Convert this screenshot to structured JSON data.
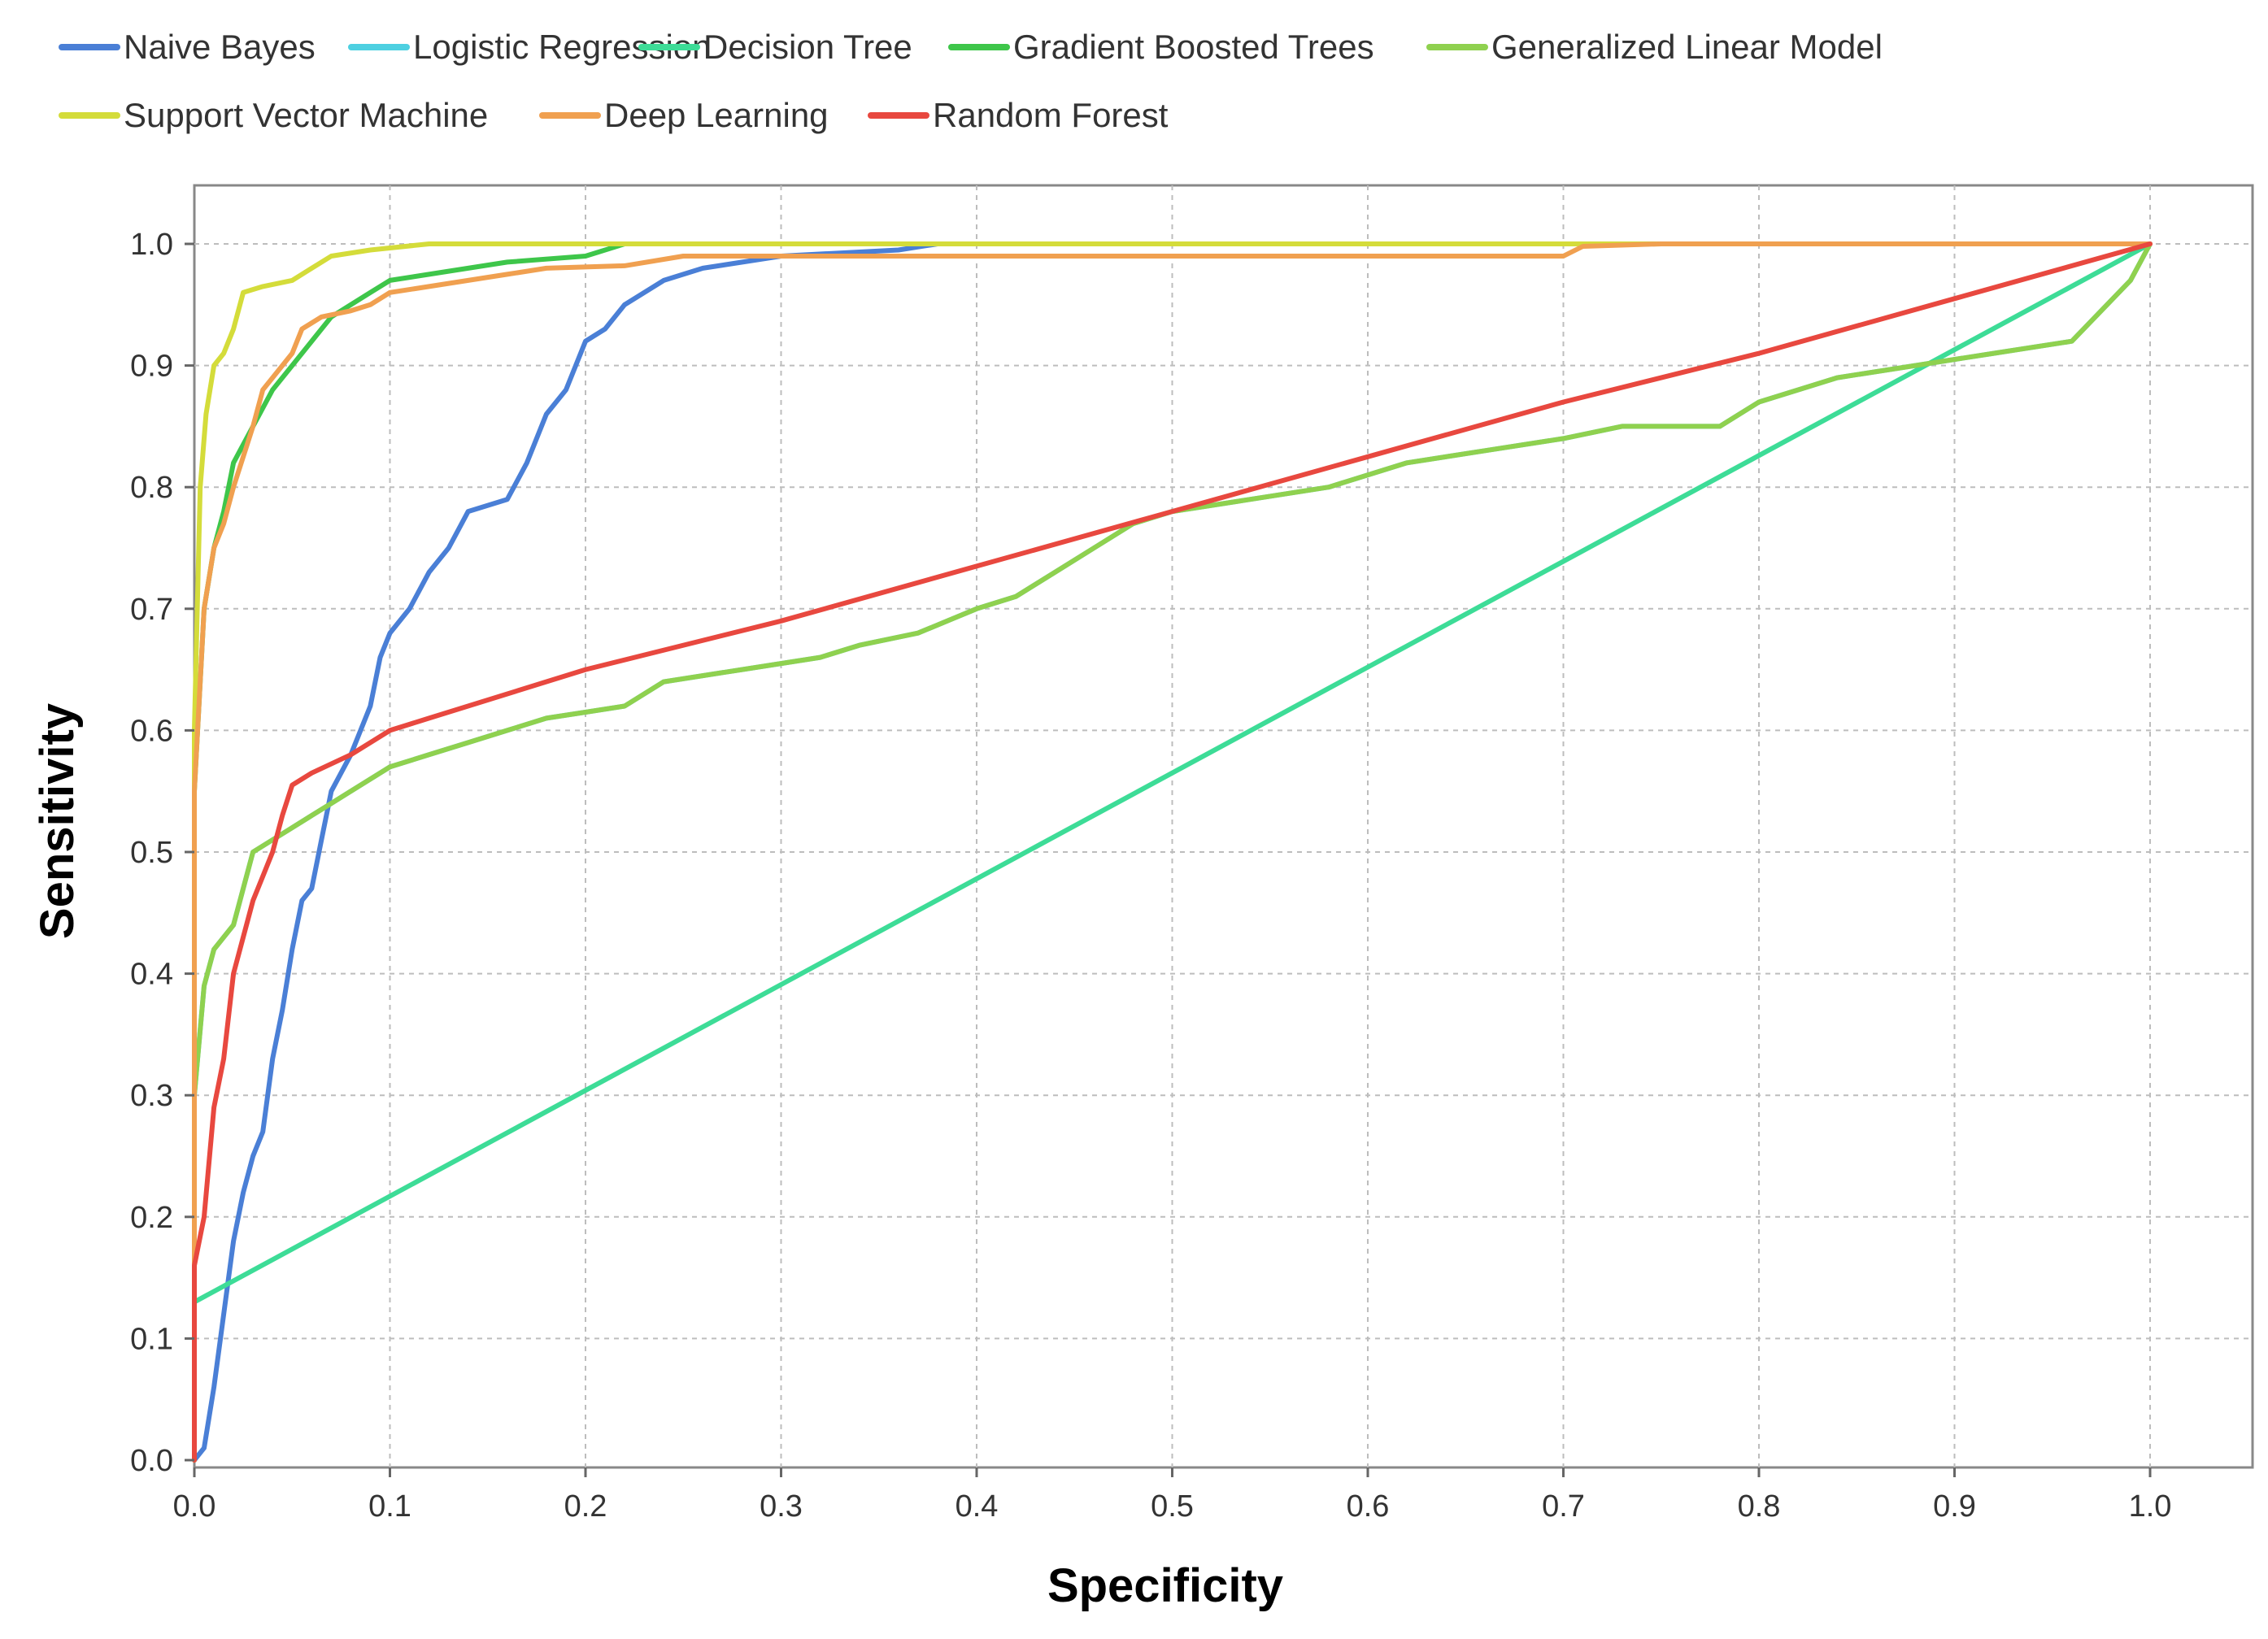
{
  "chart_data": {
    "type": "line",
    "title": "",
    "xlabel": "Specificity",
    "ylabel": "Sensitivity",
    "xlim": [
      0.0,
      1.05
    ],
    "ylim": [
      0.0,
      1.05
    ],
    "xticks": [
      "0.0",
      "0.1",
      "0.2",
      "0.3",
      "0.4",
      "0.5",
      "0.6",
      "0.7",
      "0.8",
      "0.9",
      "1.0"
    ],
    "yticks": [
      "0.0",
      "0.1",
      "0.2",
      "0.3",
      "0.4",
      "0.5",
      "0.6",
      "0.7",
      "0.8",
      "0.9",
      "1.0"
    ],
    "grid": true,
    "legend_position": "top",
    "series": [
      {
        "name": "Naive Bayes",
        "color": "#4a7fd6",
        "points": [
          [
            0,
            0
          ],
          [
            0.005,
            0.01
          ],
          [
            0.01,
            0.06
          ],
          [
            0.015,
            0.12
          ],
          [
            0.02,
            0.18
          ],
          [
            0.025,
            0.22
          ],
          [
            0.03,
            0.25
          ],
          [
            0.035,
            0.27
          ],
          [
            0.04,
            0.33
          ],
          [
            0.045,
            0.37
          ],
          [
            0.05,
            0.42
          ],
          [
            0.055,
            0.46
          ],
          [
            0.06,
            0.47
          ],
          [
            0.065,
            0.51
          ],
          [
            0.07,
            0.55
          ],
          [
            0.08,
            0.58
          ],
          [
            0.085,
            0.6
          ],
          [
            0.09,
            0.62
          ],
          [
            0.095,
            0.66
          ],
          [
            0.1,
            0.68
          ],
          [
            0.11,
            0.7
          ],
          [
            0.12,
            0.73
          ],
          [
            0.13,
            0.75
          ],
          [
            0.14,
            0.78
          ],
          [
            0.16,
            0.79
          ],
          [
            0.17,
            0.82
          ],
          [
            0.18,
            0.86
          ],
          [
            0.19,
            0.88
          ],
          [
            0.2,
            0.92
          ],
          [
            0.21,
            0.93
          ],
          [
            0.22,
            0.95
          ],
          [
            0.24,
            0.97
          ],
          [
            0.26,
            0.98
          ],
          [
            0.3,
            0.99
          ],
          [
            0.36,
            0.995
          ],
          [
            0.38,
            1.0
          ],
          [
            1.0,
            1.0
          ]
        ]
      },
      {
        "name": "Logistic Regression",
        "color": "#4dd0e1",
        "points": [
          [
            0,
            0
          ],
          [
            0,
            0.3
          ],
          [
            0.005,
            0.39
          ],
          [
            0.01,
            0.42
          ],
          [
            0.02,
            0.44
          ],
          [
            0.025,
            0.47
          ],
          [
            0.03,
            0.5
          ],
          [
            0.04,
            0.51
          ],
          [
            0.05,
            0.52
          ],
          [
            0.06,
            0.53
          ],
          [
            0.07,
            0.54
          ],
          [
            0.08,
            0.55
          ],
          [
            0.1,
            0.57
          ],
          [
            0.12,
            0.58
          ],
          [
            0.14,
            0.59
          ],
          [
            0.16,
            0.6
          ],
          [
            0.18,
            0.61
          ],
          [
            0.2,
            0.615
          ],
          [
            0.22,
            0.62
          ],
          [
            0.24,
            0.64
          ],
          [
            0.28,
            0.65
          ],
          [
            0.32,
            0.66
          ],
          [
            0.34,
            0.67
          ],
          [
            0.37,
            0.68
          ],
          [
            0.4,
            0.7
          ],
          [
            0.42,
            0.71
          ],
          [
            0.44,
            0.73
          ],
          [
            0.46,
            0.75
          ],
          [
            0.48,
            0.77
          ],
          [
            0.5,
            0.78
          ],
          [
            0.54,
            0.79
          ],
          [
            0.58,
            0.8
          ],
          [
            0.62,
            0.82
          ],
          [
            0.66,
            0.83
          ],
          [
            0.7,
            0.84
          ],
          [
            0.73,
            0.85
          ],
          [
            0.78,
            0.85
          ],
          [
            0.8,
            0.87
          ],
          [
            0.84,
            0.89
          ],
          [
            0.88,
            0.9
          ],
          [
            0.92,
            0.91
          ],
          [
            0.96,
            0.92
          ],
          [
            0.99,
            0.97
          ],
          [
            1.0,
            1.0
          ]
        ]
      },
      {
        "name": "Decision Tree",
        "color": "#3ddc97",
        "points": [
          [
            0,
            0
          ],
          [
            0,
            0.13
          ],
          [
            1.0,
            1.0
          ]
        ]
      },
      {
        "name": "Gradient Boosted Trees",
        "color": "#3ec64a",
        "points": [
          [
            0,
            0
          ],
          [
            0,
            0.55
          ],
          [
            0.005,
            0.7
          ],
          [
            0.01,
            0.75
          ],
          [
            0.015,
            0.78
          ],
          [
            0.02,
            0.82
          ],
          [
            0.03,
            0.85
          ],
          [
            0.04,
            0.88
          ],
          [
            0.05,
            0.9
          ],
          [
            0.06,
            0.92
          ],
          [
            0.07,
            0.94
          ],
          [
            0.08,
            0.95
          ],
          [
            0.09,
            0.96
          ],
          [
            0.1,
            0.97
          ],
          [
            0.12,
            0.975
          ],
          [
            0.14,
            0.98
          ],
          [
            0.16,
            0.985
          ],
          [
            0.2,
            0.99
          ],
          [
            0.22,
            1.0
          ],
          [
            1.0,
            1.0
          ]
        ]
      },
      {
        "name": "Generalized Linear Model",
        "color": "#8fd14f",
        "points": [
          [
            0,
            0
          ],
          [
            0,
            0.3
          ],
          [
            0.005,
            0.39
          ],
          [
            0.01,
            0.42
          ],
          [
            0.02,
            0.44
          ],
          [
            0.025,
            0.47
          ],
          [
            0.03,
            0.5
          ],
          [
            0.04,
            0.51
          ],
          [
            0.05,
            0.52
          ],
          [
            0.06,
            0.53
          ],
          [
            0.07,
            0.54
          ],
          [
            0.08,
            0.55
          ],
          [
            0.1,
            0.57
          ],
          [
            0.12,
            0.58
          ],
          [
            0.14,
            0.59
          ],
          [
            0.16,
            0.6
          ],
          [
            0.18,
            0.61
          ],
          [
            0.2,
            0.615
          ],
          [
            0.22,
            0.62
          ],
          [
            0.24,
            0.64
          ],
          [
            0.28,
            0.65
          ],
          [
            0.32,
            0.66
          ],
          [
            0.34,
            0.67
          ],
          [
            0.37,
            0.68
          ],
          [
            0.4,
            0.7
          ],
          [
            0.42,
            0.71
          ],
          [
            0.44,
            0.73
          ],
          [
            0.46,
            0.75
          ],
          [
            0.48,
            0.77
          ],
          [
            0.5,
            0.78
          ],
          [
            0.54,
            0.79
          ],
          [
            0.58,
            0.8
          ],
          [
            0.62,
            0.82
          ],
          [
            0.66,
            0.83
          ],
          [
            0.7,
            0.84
          ],
          [
            0.73,
            0.85
          ],
          [
            0.78,
            0.85
          ],
          [
            0.8,
            0.87
          ],
          [
            0.84,
            0.89
          ],
          [
            0.88,
            0.9
          ],
          [
            0.92,
            0.91
          ],
          [
            0.96,
            0.92
          ],
          [
            0.99,
            0.97
          ],
          [
            1.0,
            1.0
          ]
        ]
      },
      {
        "name": "Support Vector Machine",
        "color": "#d4dc3a",
        "points": [
          [
            0,
            0
          ],
          [
            0,
            0.6
          ],
          [
            0.003,
            0.8
          ],
          [
            0.006,
            0.86
          ],
          [
            0.01,
            0.9
          ],
          [
            0.015,
            0.91
          ],
          [
            0.02,
            0.93
          ],
          [
            0.025,
            0.96
          ],
          [
            0.035,
            0.965
          ],
          [
            0.05,
            0.97
          ],
          [
            0.06,
            0.98
          ],
          [
            0.07,
            0.99
          ],
          [
            0.09,
            0.995
          ],
          [
            0.12,
            1.0
          ],
          [
            1.0,
            1.0
          ]
        ]
      },
      {
        "name": "Deep Learning",
        "color": "#f0a050",
        "points": [
          [
            0,
            0
          ],
          [
            0,
            0.55
          ],
          [
            0.005,
            0.7
          ],
          [
            0.01,
            0.75
          ],
          [
            0.015,
            0.77
          ],
          [
            0.02,
            0.8
          ],
          [
            0.03,
            0.85
          ],
          [
            0.035,
            0.88
          ],
          [
            0.04,
            0.89
          ],
          [
            0.05,
            0.91
          ],
          [
            0.055,
            0.93
          ],
          [
            0.065,
            0.94
          ],
          [
            0.08,
            0.945
          ],
          [
            0.09,
            0.95
          ],
          [
            0.1,
            0.96
          ],
          [
            0.12,
            0.965
          ],
          [
            0.14,
            0.97
          ],
          [
            0.16,
            0.975
          ],
          [
            0.18,
            0.98
          ],
          [
            0.22,
            0.982
          ],
          [
            0.25,
            0.99
          ],
          [
            0.7,
            0.99
          ],
          [
            0.71,
            0.998
          ],
          [
            0.75,
            1.0
          ],
          [
            1.0,
            1.0
          ]
        ]
      },
      {
        "name": "Random Forest",
        "color": "#e8483f",
        "points": [
          [
            0,
            0
          ],
          [
            0,
            0.16
          ],
          [
            0.005,
            0.2
          ],
          [
            0.01,
            0.29
          ],
          [
            0.015,
            0.33
          ],
          [
            0.02,
            0.4
          ],
          [
            0.025,
            0.43
          ],
          [
            0.03,
            0.46
          ],
          [
            0.035,
            0.48
          ],
          [
            0.04,
            0.5
          ],
          [
            0.045,
            0.53
          ],
          [
            0.05,
            0.555
          ],
          [
            0.06,
            0.565
          ],
          [
            0.08,
            0.58
          ],
          [
            0.1,
            0.6
          ],
          [
            0.12,
            0.61
          ],
          [
            0.2,
            0.65
          ],
          [
            0.3,
            0.69
          ],
          [
            0.4,
            0.735
          ],
          [
            0.5,
            0.78
          ],
          [
            0.6,
            0.825
          ],
          [
            0.7,
            0.87
          ],
          [
            0.8,
            0.91
          ],
          [
            0.9,
            0.955
          ],
          [
            1.0,
            1.0
          ]
        ]
      }
    ]
  }
}
